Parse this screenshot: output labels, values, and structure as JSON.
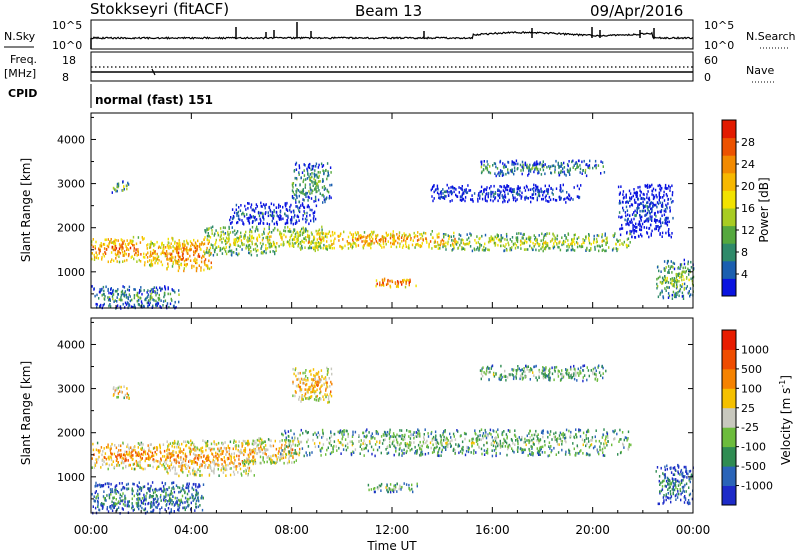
{
  "header": {
    "station": "Stokkseyri (fitACF)",
    "beam": "Beam 13",
    "date": "09/Apr/2016"
  },
  "aux_panel": {
    "left_labels": {
      "nsky": "N.Sky",
      "freq": "Freq.",
      "mhz": "[MHz]",
      "cpid": "CPID"
    },
    "right_labels": {
      "nsearch": "N.Search",
      "nave": "Nave"
    },
    "nsky_ticks": [
      "10^5",
      "10^0"
    ],
    "freq_ticks": [
      "18",
      "8"
    ],
    "nsearch_ticks": [
      "10^5",
      "10^0"
    ],
    "nave_ticks": [
      "60",
      "0"
    ],
    "cpid_text": "normal (fast) 151"
  },
  "chart_data": [
    {
      "type": "heatmap",
      "name": "power",
      "ylabel": "Slant Range [km]",
      "ylim": [
        180,
        4600
      ],
      "yticks": [
        1000,
        2000,
        3000,
        4000
      ],
      "xlim": [
        0,
        24
      ],
      "colorbar": {
        "label": "Power [dB]",
        "ticks": [
          "28",
          "24",
          "20",
          "16",
          "12",
          "8",
          "4"
        ],
        "colors": [
          "#0a14e0",
          "#1b5fb0",
          "#2f8a6a",
          "#55a83e",
          "#a8cc22",
          "#f2e200",
          "#f7b800",
          "#f28a00",
          "#ec5200",
          "#e21a00"
        ]
      },
      "regions": [
        {
          "t0": 0.0,
          "t1": 2.1,
          "r0": 1250,
          "r1": 1820,
          "level": 0.78
        },
        {
          "t0": 2.0,
          "t1": 3.6,
          "r0": 1150,
          "r1": 1750,
          "level": 0.7
        },
        {
          "t0": 3.0,
          "t1": 4.8,
          "r0": 1050,
          "r1": 1800,
          "level": 0.8
        },
        {
          "t0": 4.5,
          "t1": 7.3,
          "r0": 1400,
          "r1": 2050,
          "level": 0.5
        },
        {
          "t0": 7.0,
          "t1": 9.4,
          "r0": 1500,
          "r1": 2050,
          "level": 0.55
        },
        {
          "t0": 8.6,
          "t1": 14.5,
          "r0": 1550,
          "r1": 1950,
          "level": 0.72
        },
        {
          "t0": 14.0,
          "t1": 21.5,
          "r0": 1500,
          "r1": 1900,
          "level": 0.5
        },
        {
          "t0": 11.0,
          "t1": 13.0,
          "r0": 680,
          "r1": 880,
          "level": 0.85
        },
        {
          "t0": 8.0,
          "t1": 9.6,
          "r0": 2600,
          "r1": 3500,
          "level": 0.35
        },
        {
          "t0": 13.5,
          "t1": 19.5,
          "r0": 2600,
          "r1": 3000,
          "level": 0.12
        },
        {
          "t0": 15.5,
          "t1": 20.5,
          "r0": 3200,
          "r1": 3550,
          "level": 0.3
        },
        {
          "t0": 0.0,
          "t1": 3.5,
          "r0": 200,
          "r1": 700,
          "level": 0.3
        },
        {
          "t0": 5.5,
          "t1": 9.0,
          "r0": 2100,
          "r1": 2600,
          "level": 0.15
        },
        {
          "t0": 22.5,
          "t1": 24.0,
          "r0": 400,
          "r1": 1300,
          "level": 0.4
        },
        {
          "t0": 21.0,
          "t1": 23.2,
          "r0": 1800,
          "r1": 3000,
          "level": 0.1
        },
        {
          "t0": 0.8,
          "t1": 1.5,
          "r0": 2800,
          "r1": 3100,
          "level": 0.4
        }
      ]
    },
    {
      "type": "heatmap",
      "name": "velocity",
      "ylabel": "Slant Range [km]",
      "xlabel": "Time UT",
      "xticks": [
        "00:00",
        "04:00",
        "08:00",
        "12:00",
        "16:00",
        "20:00",
        "00:00"
      ],
      "ylim": [
        180,
        4600
      ],
      "yticks": [
        1000,
        2000,
        3000,
        4000
      ],
      "xlim": [
        0,
        24
      ],
      "colorbar": {
        "label": "Velocity [m s",
        "label_sup": "-1",
        "label_close": "]",
        "ticks": [
          "1000",
          "500",
          "100",
          "25",
          "-25",
          "-100",
          "-500",
          "-1000"
        ],
        "colors": [
          "#1d2bc8",
          "#2a64b8",
          "#2f8c52",
          "#6cbc3c",
          "#c8c8be",
          "#f5c000",
          "#f58200",
          "#ef4c00",
          "#e81c00"
        ]
      },
      "regions": [
        {
          "t0": 0.0,
          "t1": 3.6,
          "r0": 1200,
          "r1": 1800,
          "level": 0.72
        },
        {
          "t0": 3.0,
          "t1": 6.5,
          "r0": 1050,
          "r1": 1850,
          "level": 0.7
        },
        {
          "t0": 6.0,
          "t1": 8.3,
          "r0": 1300,
          "r1": 1900,
          "level": 0.66
        },
        {
          "t0": 7.5,
          "t1": 21.5,
          "r0": 1500,
          "r1": 2100,
          "level": 0.45
        },
        {
          "t0": 11.0,
          "t1": 13.0,
          "r0": 680,
          "r1": 880,
          "level": 0.45
        },
        {
          "t0": 8.0,
          "t1": 9.6,
          "r0": 2700,
          "r1": 3500,
          "level": 0.7
        },
        {
          "t0": 15.5,
          "t1": 20.5,
          "r0": 3200,
          "r1": 3550,
          "level": 0.45
        },
        {
          "t0": 0.0,
          "t1": 4.5,
          "r0": 200,
          "r1": 900,
          "level": 0.28
        },
        {
          "t0": 22.5,
          "t1": 24.0,
          "r0": 400,
          "r1": 1300,
          "level": 0.25
        },
        {
          "t0": 0.8,
          "t1": 1.5,
          "r0": 2800,
          "r1": 3100,
          "level": 0.7
        }
      ]
    }
  ]
}
